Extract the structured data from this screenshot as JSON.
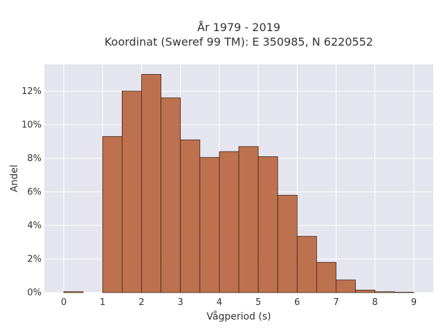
{
  "chart_data": {
    "type": "bar",
    "title_line1": "År 1979 - 2019",
    "title_line2": "Koordinat (Sweref 99 TM): E 350985, N 6220552",
    "xlabel": "Vågperiod (s)",
    "ylabel": "Andel",
    "x_ticks": [
      0,
      1,
      2,
      3,
      4,
      5,
      6,
      7,
      8,
      9
    ],
    "y_ticks": [
      0,
      2,
      4,
      6,
      8,
      10,
      12
    ],
    "y_tick_suffix": "%",
    "xlim": [
      -0.5,
      9.5
    ],
    "ylim": [
      0,
      13.6
    ],
    "bins": [
      {
        "x0": 0.0,
        "x1": 0.5,
        "value": 0.05
      },
      {
        "x0": 1.0,
        "x1": 1.5,
        "value": 9.3
      },
      {
        "x0": 1.5,
        "x1": 2.0,
        "value": 12.0
      },
      {
        "x0": 2.0,
        "x1": 2.5,
        "value": 13.0
      },
      {
        "x0": 2.5,
        "x1": 3.0,
        "value": 11.6
      },
      {
        "x0": 3.0,
        "x1": 3.5,
        "value": 9.1
      },
      {
        "x0": 3.5,
        "x1": 4.0,
        "value": 8.05
      },
      {
        "x0": 4.0,
        "x1": 4.5,
        "value": 8.4
      },
      {
        "x0": 4.5,
        "x1": 5.0,
        "value": 8.7
      },
      {
        "x0": 5.0,
        "x1": 5.5,
        "value": 8.1
      },
      {
        "x0": 5.5,
        "x1": 6.0,
        "value": 5.8
      },
      {
        "x0": 6.0,
        "x1": 6.5,
        "value": 3.35
      },
      {
        "x0": 6.5,
        "x1": 7.0,
        "value": 1.8
      },
      {
        "x0": 7.0,
        "x1": 7.5,
        "value": 0.75
      },
      {
        "x0": 7.5,
        "x1": 8.0,
        "value": 0.15
      },
      {
        "x0": 8.0,
        "x1": 8.5,
        "value": 0.05
      },
      {
        "x0": 8.5,
        "x1": 9.0,
        "value": 0.02
      }
    ],
    "grid": true,
    "colors": {
      "bar_fill": "#b8643c",
      "bar_stroke": "#3a2418",
      "plot_bg": "#e5e5ef",
      "grid": "#ffffff"
    }
  }
}
